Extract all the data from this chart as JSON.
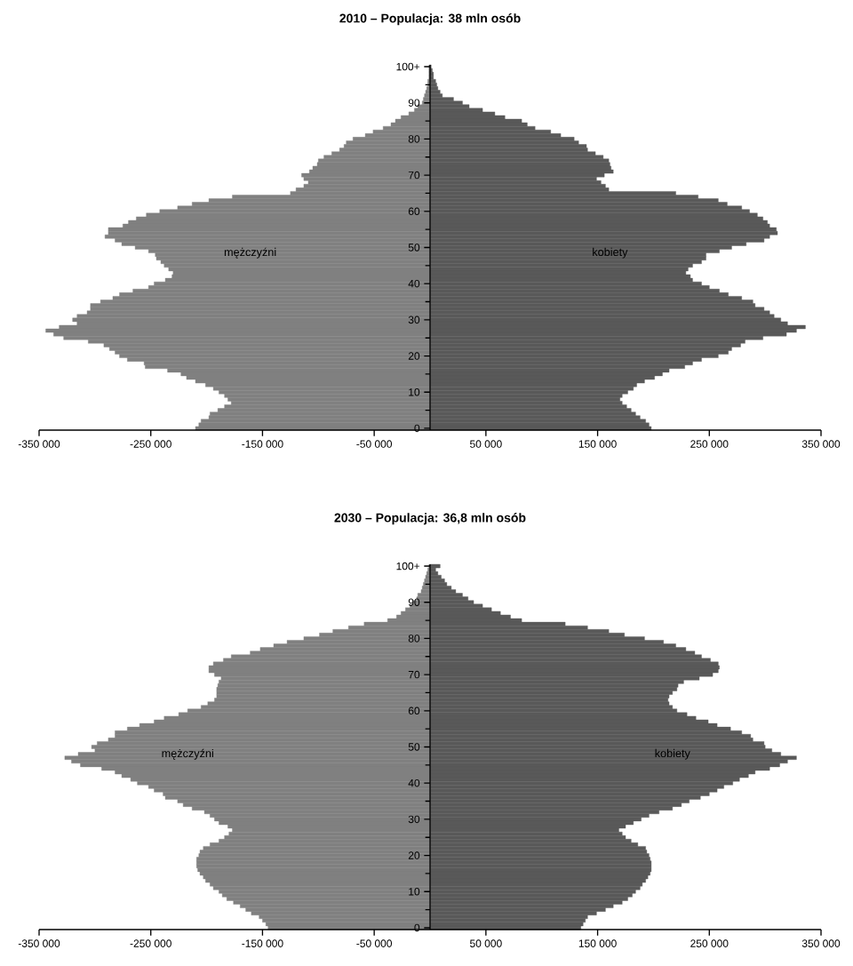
{
  "chart_data": [
    {
      "type": "bar",
      "orientation": "horizontal",
      "stacked": true,
      "title": "2010 – Populacja: 38 mln osób",
      "categories": [
        "100+",
        null,
        null,
        null,
        null,
        null,
        null,
        null,
        null,
        null,
        "90",
        null,
        null,
        null,
        null,
        null,
        null,
        null,
        null,
        null,
        "80",
        null,
        null,
        null,
        null,
        null,
        null,
        null,
        null,
        null,
        "70",
        null,
        null,
        null,
        null,
        null,
        null,
        null,
        null,
        null,
        "60",
        null,
        null,
        null,
        null,
        null,
        null,
        null,
        null,
        null,
        "50",
        null,
        null,
        null,
        null,
        null,
        null,
        null,
        null,
        null,
        "40",
        null,
        null,
        null,
        null,
        null,
        null,
        null,
        null,
        null,
        "30",
        null,
        null,
        null,
        null,
        null,
        null,
        null,
        null,
        null,
        "20",
        null,
        null,
        null,
        null,
        null,
        null,
        null,
        null,
        null,
        "10",
        null,
        null,
        null,
        null,
        null,
        null,
        null,
        null,
        null,
        "0"
      ],
      "series": [
        {
          "name": "mężczyźni",
          "color": "#808080",
          "values": [
            -1000,
            -1000,
            -1000,
            -1000,
            -2000,
            -2000,
            -3000,
            -4000,
            -5000,
            -6000,
            -7000,
            -11000,
            -14000,
            -19000,
            -26000,
            -31000,
            -35000,
            -42000,
            -51000,
            -58000,
            -69000,
            -75000,
            -77000,
            -81000,
            -88000,
            -95000,
            -100000,
            -101000,
            -105000,
            -108000,
            -115000,
            -113000,
            -109000,
            -113000,
            -120000,
            -125000,
            -177000,
            -198000,
            -213000,
            -226000,
            -242000,
            -254000,
            -263000,
            -270000,
            -275000,
            -288000,
            -288000,
            -291000,
            -282000,
            -276000,
            -264000,
            -252000,
            -246000,
            -245000,
            -241000,
            -238000,
            -234000,
            -230000,
            -231000,
            -237000,
            -247000,
            -252000,
            -266000,
            -278000,
            -284000,
            -295000,
            -304000,
            -304000,
            -307000,
            -316000,
            -320000,
            -316000,
            -332000,
            -344000,
            -337000,
            -328000,
            -306000,
            -292000,
            -287000,
            -282000,
            -278000,
            -271000,
            -256000,
            -255000,
            -235000,
            -223000,
            -218000,
            -210000,
            -201000,
            -194000,
            -189000,
            -184000,
            -181000,
            -178000,
            -184000,
            -190000,
            -197000,
            -198000,
            -205000,
            -207000,
            -210000
          ]
        },
        {
          "name": "kobiety",
          "color": "#595959",
          "values": [
            1000,
            2000,
            3000,
            3000,
            5000,
            6000,
            7000,
            9000,
            11000,
            21000,
            29000,
            35000,
            47000,
            58000,
            67000,
            82000,
            87000,
            94000,
            108000,
            117000,
            129000,
            133000,
            140000,
            141000,
            148000,
            155000,
            160000,
            161000,
            162000,
            164000,
            156000,
            149000,
            153000,
            157000,
            160000,
            220000,
            240000,
            258000,
            266000,
            279000,
            286000,
            293000,
            298000,
            302000,
            304000,
            310000,
            311000,
            304000,
            299000,
            283000,
            270000,
            259000,
            247000,
            247000,
            243000,
            235000,
            231000,
            229000,
            233000,
            235000,
            243000,
            250000,
            259000,
            267000,
            279000,
            289000,
            291000,
            299000,
            304000,
            308000,
            314000,
            320000,
            336000,
            328000,
            319000,
            298000,
            282000,
            278000,
            270000,
            267000,
            258000,
            243000,
            235000,
            228000,
            214000,
            208000,
            201000,
            192000,
            185000,
            182000,
            177000,
            172000,
            170000,
            172000,
            176000,
            180000,
            184000,
            188000,
            193000,
            196000,
            198000
          ]
        }
      ],
      "xlim": [
        -350000,
        350000
      ],
      "xticks": [
        {
          "value": -350000,
          "label": "-350 000"
        },
        {
          "value": -250000,
          "label": "-250 000"
        },
        {
          "value": -150000,
          "label": "-150 000"
        },
        {
          "value": -50000,
          "label": "-50 000"
        },
        {
          "value": 50000,
          "label": "50 000"
        },
        {
          "value": 150000,
          "label": "150 000"
        },
        {
          "value": 250000,
          "label": "250 000"
        },
        {
          "value": 350000,
          "label": "350 000"
        }
      ]
    },
    {
      "type": "bar",
      "orientation": "horizontal",
      "stacked": true,
      "title": "2030 – Populacja: 36,8 mln osób",
      "categories": [
        "100+",
        null,
        null,
        null,
        null,
        null,
        null,
        null,
        null,
        null,
        "90",
        null,
        null,
        null,
        null,
        null,
        null,
        null,
        null,
        null,
        "80",
        null,
        null,
        null,
        null,
        null,
        null,
        null,
        null,
        null,
        "70",
        null,
        null,
        null,
        null,
        null,
        null,
        null,
        null,
        null,
        "60",
        null,
        null,
        null,
        null,
        null,
        null,
        null,
        null,
        null,
        "50",
        null,
        null,
        null,
        null,
        null,
        null,
        null,
        null,
        null,
        "40",
        null,
        null,
        null,
        null,
        null,
        null,
        null,
        null,
        null,
        "30",
        null,
        null,
        null,
        null,
        null,
        null,
        null,
        null,
        null,
        "20",
        null,
        null,
        null,
        null,
        null,
        null,
        null,
        null,
        null,
        "10",
        null,
        null,
        null,
        null,
        null,
        null,
        null,
        null,
        null,
        "0"
      ],
      "series": [
        {
          "name": "mężczyźni",
          "color": "#808080",
          "values": [
            -1000,
            -2000,
            -3000,
            -4000,
            -5000,
            -6000,
            -7000,
            -8000,
            -11000,
            -12000,
            -15000,
            -18000,
            -22000,
            -26000,
            -30000,
            -38000,
            -59000,
            -73000,
            -87000,
            -99000,
            -113000,
            -128000,
            -140000,
            -152000,
            -161000,
            -178000,
            -185000,
            -194000,
            -198000,
            -198000,
            -193000,
            -187000,
            -189000,
            -190000,
            -191000,
            -191000,
            -191000,
            -193000,
            -199000,
            -205000,
            -217000,
            -225000,
            -238000,
            -247000,
            -260000,
            -271000,
            -282000,
            -282000,
            -288000,
            -298000,
            -303000,
            -300000,
            -315000,
            -327000,
            -321000,
            -313000,
            -294000,
            -282000,
            -276000,
            -268000,
            -262000,
            -252000,
            -247000,
            -239000,
            -237000,
            -226000,
            -221000,
            -213000,
            -202000,
            -197000,
            -193000,
            -189000,
            -181000,
            -177000,
            -180000,
            -184000,
            -189000,
            -197000,
            -203000,
            -206000,
            -207000,
            -209000,
            -209000,
            -209000,
            -208000,
            -206000,
            -203000,
            -201000,
            -197000,
            -194000,
            -189000,
            -186000,
            -182000,
            -176000,
            -170000,
            -165000,
            -160000,
            -153000,
            -150000,
            -147000,
            -145000
          ]
        },
        {
          "name": "kobiety",
          "color": "#595959",
          "values": [
            9000,
            5000,
            7000,
            10000,
            13000,
            15000,
            19000,
            23000,
            29000,
            34000,
            39000,
            47000,
            55000,
            63000,
            72000,
            82000,
            121000,
            141000,
            160000,
            174000,
            192000,
            209000,
            220000,
            229000,
            237000,
            243000,
            251000,
            258000,
            259000,
            258000,
            253000,
            241000,
            227000,
            222000,
            221000,
            217000,
            214000,
            213000,
            214000,
            217000,
            221000,
            230000,
            238000,
            249000,
            257000,
            269000,
            279000,
            287000,
            289000,
            299000,
            300000,
            306000,
            314000,
            328000,
            320000,
            313000,
            304000,
            291000,
            285000,
            277000,
            271000,
            263000,
            257000,
            250000,
            242000,
            232000,
            225000,
            217000,
            205000,
            196000,
            189000,
            182000,
            175000,
            169000,
            172000,
            175000,
            180000,
            186000,
            193000,
            194000,
            196000,
            197000,
            198000,
            198000,
            198000,
            197000,
            195000,
            193000,
            190000,
            188000,
            184000,
            181000,
            177000,
            172000,
            164000,
            157000,
            149000,
            141000,
            139000,
            137000,
            135000
          ]
        }
      ],
      "xlim": [
        -350000,
        350000
      ],
      "xticks": [
        {
          "value": -350000,
          "label": "-350 000"
        },
        {
          "value": -250000,
          "label": "-250 000"
        },
        {
          "value": -150000,
          "label": "-150 000"
        },
        {
          "value": -50000,
          "label": "-50 000"
        },
        {
          "value": 50000,
          "label": "50 000"
        },
        {
          "value": 150000,
          "label": "150 000"
        },
        {
          "value": 250000,
          "label": "250 000"
        },
        {
          "value": 350000,
          "label": "350 000"
        }
      ]
    }
  ]
}
